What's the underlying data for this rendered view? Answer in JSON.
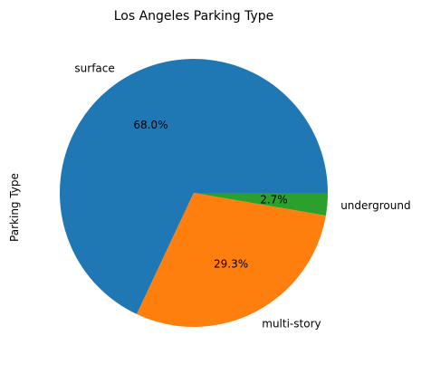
{
  "chart_data": {
    "type": "pie",
    "title": "Los Angeles Parking Type",
    "ylabel": "Parking Type",
    "slices": [
      {
        "label": "surface",
        "value": 68.0,
        "pct_label": "68.0%",
        "color": "#1f77b4"
      },
      {
        "label": "multi-story",
        "value": 29.3,
        "pct_label": "29.3%",
        "color": "#ff7f0e"
      },
      {
        "label": "underground",
        "value": 2.7,
        "pct_label": "2.7%",
        "color": "#2ca02c"
      }
    ],
    "start_angle_deg": 0,
    "direction": "counterclockwise"
  }
}
